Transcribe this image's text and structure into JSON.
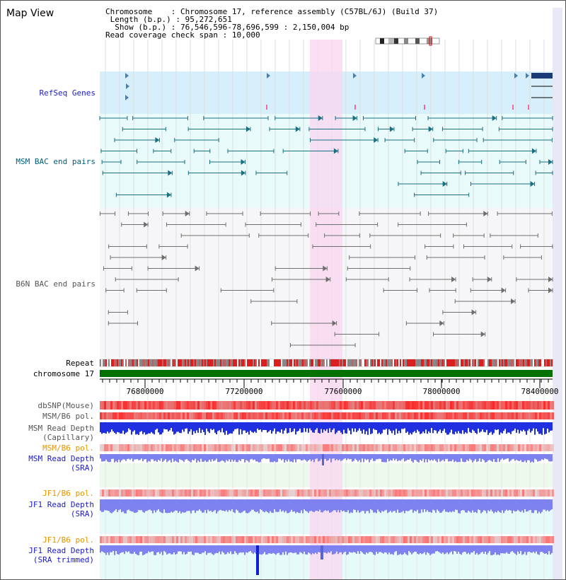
{
  "title": "Map View",
  "header": {
    "chromosome_key": "Chromosome",
    "chromosome_value": "Chromosome 17, reference assembly (C57BL/6J) (Build 37)",
    "length_key": "Length (b.p.)",
    "length_value": "95,272,651",
    "show_key": "Show (b.p.)",
    "show_value": "76,546,596-78,696,599 : 2,150,004 bp",
    "coverage_key": "Read coverage check span",
    "coverage_value": "10,000"
  },
  "tracks": {
    "refseq": "RefSeq Genes",
    "msm_bac": "MSM BAC end pairs",
    "b6n_bac": "B6N BAC end pairs",
    "repeat": "Repeat",
    "chromosome": "chromosome 17",
    "dbsnp": "dbSNP(Mouse)",
    "msm_b6_pol_1": "MSM/B6 pol.",
    "msm_depth_cap_1": "MSM Read Depth",
    "msm_depth_cap_2": "(Capillary)",
    "msm_b6_pol_2": "MSM/B6 pol.",
    "msm_depth_sra_1": "MSM Read Depth",
    "msm_depth_sra_2": "(SRA)",
    "jf1_pol_1": "JF1/B6 pol.",
    "jf1_depth_1": "JF1 Read Depth",
    "jf1_depth_1b": "(SRA)",
    "jf1_pol_2": "JF1/B6 pol.",
    "jf1_depth_2": "JF1 Read Depth",
    "jf1_depth_2b": "(SRA trimmed)"
  },
  "axis": {
    "tick_labels": [
      "76800000",
      "77200000",
      "77600000",
      "78000000",
      "78400000"
    ]
  },
  "colors": {
    "refseq_bg": "#d7effa",
    "msm_bg": "#e8fafa",
    "b6n_bg": "#f6f6f8",
    "highlight": "#f9d5f0",
    "msm_feature": "#1a6f80",
    "b6n_feature": "#6e6e6e",
    "chromosome_bar": "#007000",
    "depth_blue": "#2030e0",
    "depth_light": "#7d82f0",
    "pol_red": "#e84040"
  }
}
